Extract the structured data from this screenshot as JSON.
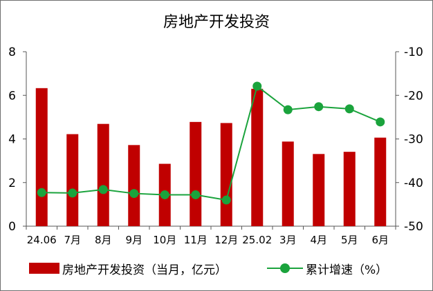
{
  "chart_data": {
    "type": "bar",
    "title": "房地产开发投资",
    "categories": [
      "24.06",
      "7月",
      "8月",
      "9月",
      "10月",
      "11月",
      "12月",
      "25.02",
      "3月",
      "4月",
      "5月",
      "6月"
    ],
    "series": [
      {
        "name": "房地产开发投资（当月，亿元）",
        "type": "bar",
        "axis": "left",
        "color": "#c00000",
        "values": [
          6.33,
          4.22,
          4.69,
          3.72,
          2.86,
          4.78,
          4.73,
          6.3,
          3.88,
          3.31,
          3.41,
          4.06
        ]
      },
      {
        "name": "累计增速（%）",
        "type": "line",
        "axis": "right",
        "color": "#1aa33c",
        "values": [
          -42.3,
          -42.4,
          -41.6,
          -42.5,
          -42.8,
          -42.8,
          -44.0,
          -17.9,
          -23.3,
          -22.6,
          -23.1,
          -26.1
        ]
      }
    ],
    "ylim_left": [
      0,
      8
    ],
    "yticks_left": [
      "0",
      "2",
      "4",
      "6",
      "8"
    ],
    "ylim_right": [
      -50,
      -10
    ],
    "yticks_right": [
      "-50",
      "-40",
      "-30",
      "-20",
      "-10"
    ],
    "grid": false,
    "legend_position": "bottom"
  }
}
